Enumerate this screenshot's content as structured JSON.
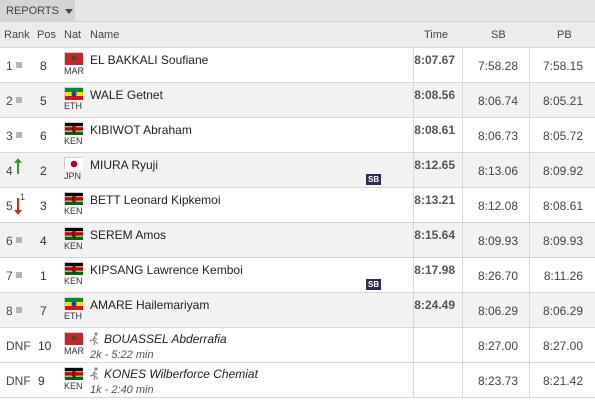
{
  "toolbar": {
    "reports_label": "REPORTS"
  },
  "columns": {
    "rank": "Rank",
    "pos": "Pos",
    "nat": "Nat",
    "name": "Name",
    "time": "Time",
    "sb": "SB",
    "pb": "PB"
  },
  "rows": [
    {
      "rank": "1",
      "indicator": "none",
      "pos": "8",
      "nat": "MAR",
      "flag": "mar",
      "name": "EL BAKKALI Soufiane",
      "time": "8:07.67",
      "sb": "7:58.28",
      "pb": "7:58.15",
      "badge": ""
    },
    {
      "rank": "2",
      "indicator": "none",
      "pos": "5",
      "nat": "ETH",
      "flag": "eth",
      "name": "WALE Getnet",
      "time": "8:08.56",
      "sb": "8:06.74",
      "pb": "8:05.21",
      "badge": ""
    },
    {
      "rank": "3",
      "indicator": "none",
      "pos": "6",
      "nat": "KEN",
      "flag": "ken",
      "name": "KIBIWOT Abraham",
      "time": "8:08.61",
      "sb": "8:06.73",
      "pb": "8:05.72",
      "badge": ""
    },
    {
      "rank": "4",
      "indicator": "up",
      "pos": "2",
      "nat": "JPN",
      "flag": "jpn",
      "name": "MIURA Ryuji",
      "time": "8:12.65",
      "sb": "8:13.06",
      "pb": "8:09.92",
      "badge": "SB"
    },
    {
      "rank": "5",
      "indicator": "down",
      "indicator_num": "1",
      "pos": "3",
      "nat": "KEN",
      "flag": "ken",
      "name": "BETT Leonard Kipkemoi",
      "time": "8:13.21",
      "sb": "8:12.08",
      "pb": "8:08.61",
      "badge": ""
    },
    {
      "rank": "6",
      "indicator": "none",
      "pos": "4",
      "nat": "KEN",
      "flag": "ken",
      "name": "SEREM Amos",
      "time": "8:15.64",
      "sb": "8:09.93",
      "pb": "8:09.93",
      "badge": ""
    },
    {
      "rank": "7",
      "indicator": "none",
      "pos": "1",
      "nat": "KEN",
      "flag": "ken",
      "name": "KIPSANG Lawrence Kemboi",
      "time": "8:17.98",
      "sb": "8:26.70",
      "pb": "8:11.26",
      "badge": "SB"
    },
    {
      "rank": "8",
      "indicator": "none",
      "pos": "7",
      "nat": "ETH",
      "flag": "eth",
      "name": "AMARE Hailemariyam",
      "time": "8:24.49",
      "sb": "8:06.29",
      "pb": "8:06.29",
      "badge": ""
    },
    {
      "rank": "DNF",
      "indicator": "dnf",
      "pos": "10",
      "nat": "MAR",
      "flag": "mar",
      "name": "BOUASSEL Abderrafia",
      "sub": "2k - 5:22 min",
      "time": "",
      "sb": "8:27.00",
      "pb": "8:27.00",
      "badge": ""
    },
    {
      "rank": "DNF",
      "indicator": "dnf",
      "pos": "9",
      "nat": "KEN",
      "flag": "ken",
      "name": "KONES Wilberforce Chemiat",
      "sub": "1k - 2:40 min",
      "time": "",
      "sb": "8:23.73",
      "pb": "8:21.42",
      "badge": ""
    }
  ],
  "colors": {
    "header_bg": "#ececec",
    "row_alt": "#f2f2f2",
    "badge_bg": "#2c2c54",
    "up": "#3a9a3a",
    "down": "#cc2b2b"
  }
}
